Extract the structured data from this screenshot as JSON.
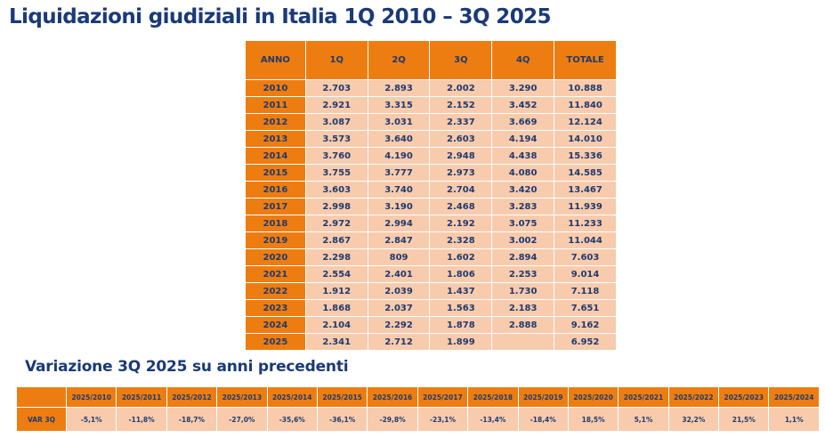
{
  "title": "Liquidazioni giudiziali in Italia 1Q 2010 – 3Q 2025",
  "main_table": {
    "headers": [
      "ANNO",
      "1Q",
      "2Q",
      "3Q",
      "4Q",
      "TOTALE"
    ],
    "rows": [
      [
        "2010",
        "2.703",
        "2.893",
        "2.002",
        "3.290",
        "10.888"
      ],
      [
        "2011",
        "2.921",
        "3.315",
        "2.152",
        "3.452",
        "11.840"
      ],
      [
        "2012",
        "3.087",
        "3.031",
        "2.337",
        "3.669",
        "12.124"
      ],
      [
        "2013",
        "3.573",
        "3.640",
        "2.603",
        "4.194",
        "14.010"
      ],
      [
        "2014",
        "3.760",
        "4.190",
        "2.948",
        "4.438",
        "15.336"
      ],
      [
        "2015",
        "3.755",
        "3.777",
        "2.973",
        "4.080",
        "14.585"
      ],
      [
        "2016",
        "3.603",
        "3.740",
        "2.704",
        "3.420",
        "13.467"
      ],
      [
        "2017",
        "2.998",
        "3.190",
        "2.468",
        "3.283",
        "11.939"
      ],
      [
        "2018",
        "2.972",
        "2.994",
        "2.192",
        "3.075",
        "11.233"
      ],
      [
        "2019",
        "2.867",
        "2.847",
        "2.328",
        "3.002",
        "11.044"
      ],
      [
        "2020",
        "2.298",
        "809",
        "1.602",
        "2.894",
        "7.603"
      ],
      [
        "2021",
        "2.554",
        "2.401",
        "1.806",
        "2.253",
        "9.014"
      ],
      [
        "2022",
        "1.912",
        "2.039",
        "1.437",
        "1.730",
        "7.118"
      ],
      [
        "2023",
        "1.868",
        "2.037",
        "1.563",
        "2.183",
        "7.651"
      ],
      [
        "2024",
        "2.104",
        "2.292",
        "1.878",
        "2.888",
        "9.162"
      ],
      [
        "2025",
        "2.341",
        "2.712",
        "1.899",
        "",
        "6.952"
      ]
    ]
  },
  "subtitle": "Variazione 3Q 2025 su anni precedenti",
  "var_table": {
    "corner": "",
    "headers": [
      "2025/2010",
      "2025/2011",
      "2025/2012",
      "2025/2013",
      "2025/2014",
      "2025/2015",
      "2025/2016",
      "2025/2017",
      "2025/2018",
      "2025/2019",
      "2025/2020",
      "2025/2021",
      "2025/2022",
      "2025/2023",
      "2025/2024"
    ],
    "row_label": "VAR 3Q",
    "values": [
      "-5,1%",
      "-11,8%",
      "-18,7%",
      "-27,0%",
      "-35,6%",
      "-36,1%",
      "-29,8%",
      "-23,1%",
      "-13,4%",
      "-18,4%",
      "18,5%",
      "5,1%",
      "32,2%",
      "21,5%",
      "1,1%"
    ]
  },
  "colors": {
    "header_orange": "#ee7d11",
    "cell_peach": "#f8cbad",
    "text_navy": "#1f3a6e",
    "title_navy": "#1a3a78"
  }
}
